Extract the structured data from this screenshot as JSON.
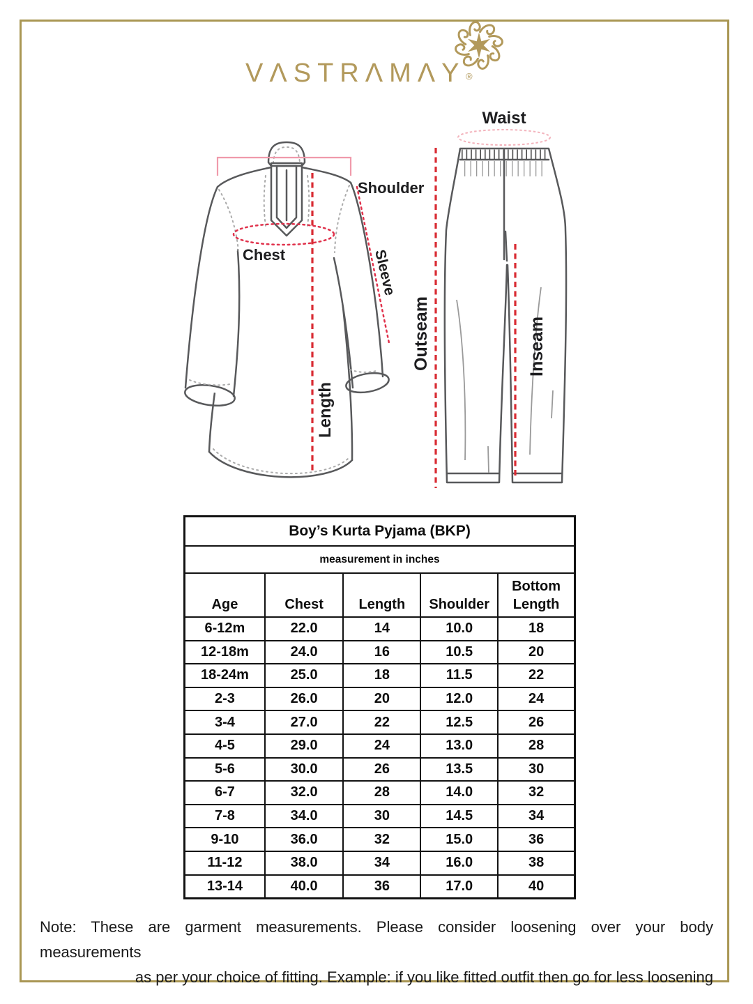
{
  "brand": {
    "logo_text": "VΛSTRΛMΛY",
    "registered_mark": "®"
  },
  "colors": {
    "brand_gold": "#b2995b",
    "frame_gold": "#a99653",
    "measure_red": "#d92b33",
    "measure_pink": "#f09aab",
    "outline_gray": "#58595b",
    "table_ink": "#121212"
  },
  "diagram": {
    "kurta": {
      "shoulder_label": "Shoulder",
      "chest_label": "Chest",
      "sleeve_label": "Sleeve",
      "length_label": "Length"
    },
    "pyjama": {
      "waist_label": "Waist",
      "outseam_label": "Outseam",
      "inseam_label": "Inseam"
    }
  },
  "size_chart": {
    "title": "Boy’s Kurta Pyjama (BKP)",
    "subtitle": "measurement in inches",
    "columns": [
      "Age",
      "Chest",
      "Length",
      "Shoulder",
      "Bottom Length"
    ],
    "rows": [
      [
        "6-12m",
        "22.0",
        "14",
        "10.0",
        "18"
      ],
      [
        "12-18m",
        "24.0",
        "16",
        "10.5",
        "20"
      ],
      [
        "18-24m",
        "25.0",
        "18",
        "11.5",
        "22"
      ],
      [
        "2-3",
        "26.0",
        "20",
        "12.0",
        "24"
      ],
      [
        "3-4",
        "27.0",
        "22",
        "12.5",
        "26"
      ],
      [
        "4-5",
        "29.0",
        "24",
        "13.0",
        "28"
      ],
      [
        "5-6",
        "30.0",
        "26",
        "13.5",
        "30"
      ],
      [
        "6-7",
        "32.0",
        "28",
        "14.0",
        "32"
      ],
      [
        "7-8",
        "34.0",
        "30",
        "14.5",
        "34"
      ],
      [
        "9-10",
        "36.0",
        "32",
        "15.0",
        "36"
      ],
      [
        "11-12",
        "38.0",
        "34",
        "16.0",
        "38"
      ],
      [
        "13-14",
        "40.0",
        "36",
        "17.0",
        "40"
      ]
    ]
  },
  "note": {
    "line1": "Note: These are garment measurements. Please consider loosening over your body measurements",
    "line2": "as per your choice of fitting. Example: if you like fitted outfit then go for less loosening"
  }
}
